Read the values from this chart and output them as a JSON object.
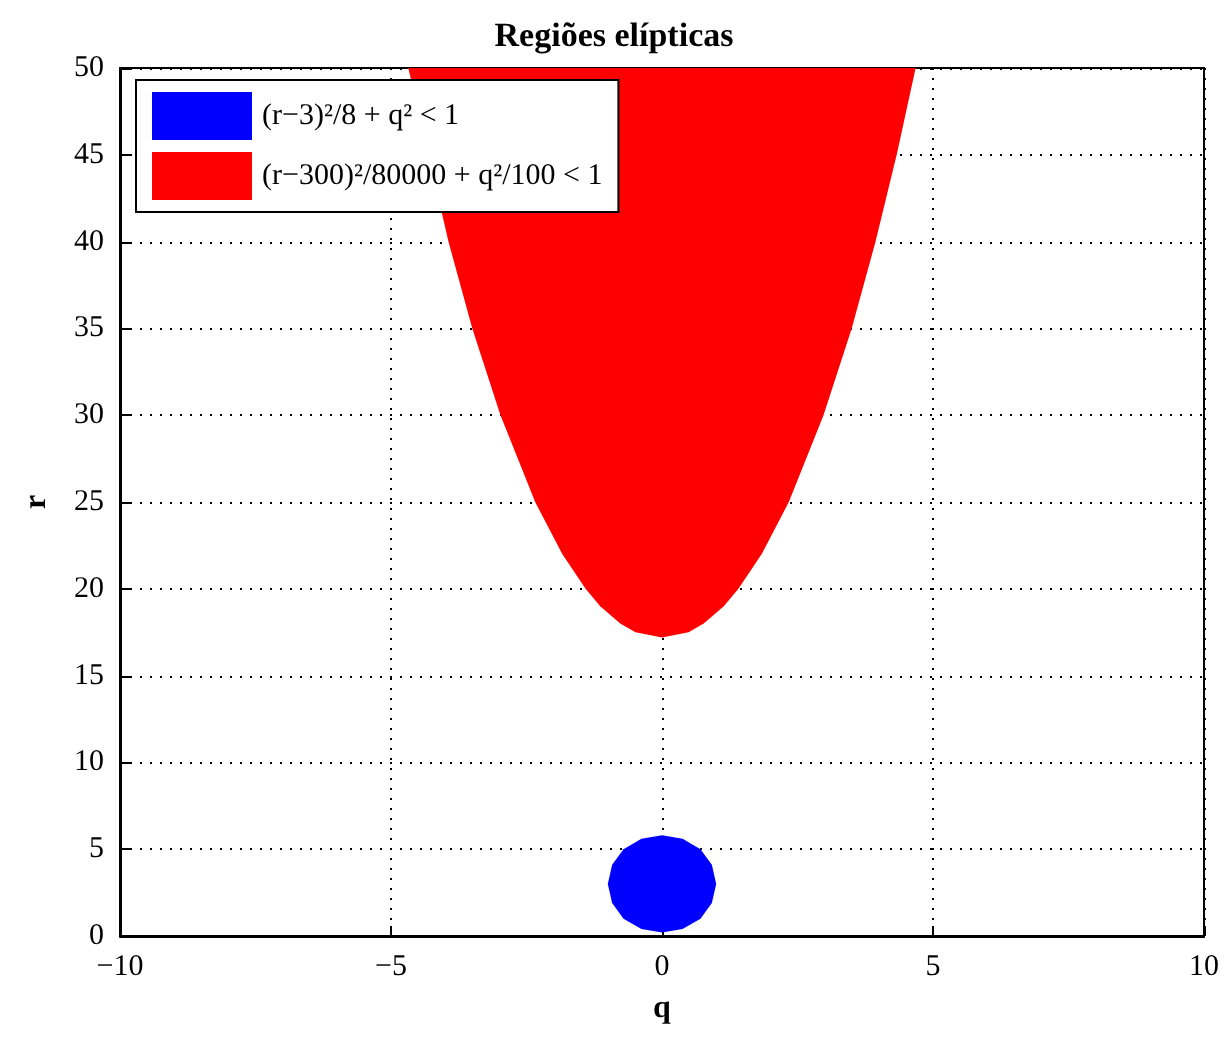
{
  "chart_data": {
    "type": "area",
    "title": "Regiões elípticas",
    "xlabel": "q",
    "ylabel": "r",
    "xlim": [
      -10,
      10
    ],
    "xticks": [
      -10,
      -5,
      0,
      5,
      10
    ],
    "ylim": [
      0,
      50
    ],
    "yticks": [
      0,
      5,
      10,
      15,
      20,
      25,
      30,
      35,
      40,
      45,
      50
    ],
    "grid": true,
    "legend": "top left",
    "series": [
      {
        "name": "(r−3)²/8 + q² < 1",
        "color": "#0000ff",
        "x": [
          1,
          0.92,
          0.71,
          0.38,
          0,
          -0.38,
          -0.71,
          -0.92,
          -1,
          -0.92,
          -0.71,
          -0.38,
          0,
          0.38,
          0.71,
          0.92
        ],
        "values": [
          3,
          4.1,
          5,
          5.6,
          5.8,
          5.6,
          5,
          4.1,
          3,
          1.9,
          1,
          0.4,
          0.2,
          0.4,
          1,
          1.9
        ]
      },
      {
        "name": "(r−300)²/80000 + q²/100 < 1",
        "color": "#ff0000",
        "x": [
          0,
          0.49,
          0.77,
          1.14,
          1.41,
          1.84,
          2.34,
          2.98,
          3.5,
          3.94,
          4.33,
          4.68,
          -4.68,
          -3.94,
          -3.5,
          -2.98,
          -2.34,
          -1.84,
          -1.41,
          -1.14,
          -0.77,
          -0.49
        ],
        "values": [
          17.2,
          17.5,
          18,
          19,
          20,
          22,
          25,
          30,
          35,
          40,
          45,
          50,
          50,
          40,
          35,
          30,
          25,
          22,
          20,
          19,
          18,
          17.5
        ]
      }
    ]
  }
}
